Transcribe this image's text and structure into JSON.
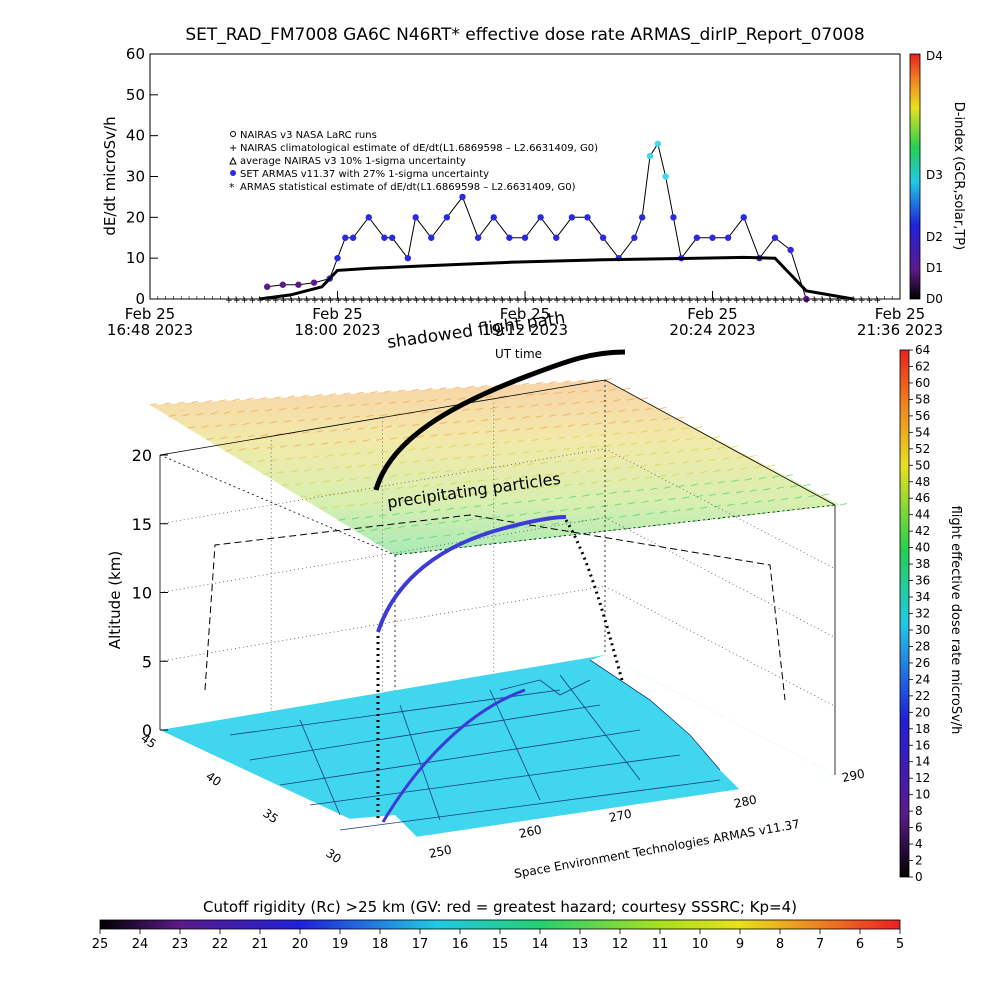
{
  "chart_data": [
    {
      "type": "line",
      "title": "SET_RAD_FM7008  GA6C N46RT* effective dose rate ARMAS_dirIP_Report_07008",
      "ylabel": "dE/dt microSv/h",
      "xlabel": "UT time",
      "ylim": [
        0,
        60
      ],
      "yticks": [
        "0",
        "10",
        "20",
        "30",
        "40",
        "50",
        "60"
      ],
      "xlim_hours": [
        16.8,
        21.6
      ],
      "xticks": [
        {
          "l1": "Feb 25",
          "l2": "16:48 2023",
          "h": 16.8
        },
        {
          "l1": "Feb 25",
          "l2": "18:00 2023",
          "h": 18.0
        },
        {
          "l1": "Feb 25",
          "l2": "19:12 2023",
          "h": 19.2
        },
        {
          "l1": "Feb 25",
          "l2": "20:24 2023",
          "h": 20.4
        },
        {
          "l1": "Feb 25",
          "l2": "21:36 2023",
          "h": 21.6
        }
      ],
      "legend": [
        "NAIRAS v3 NASA LaRC runs",
        "NAIRAS climatological estimate of dE/dt(L1.6869598 – L2.6631409, G0)",
        "average NAIRAS v3 10% 1-sigma uncertainty",
        "SET ARMAS v11.37 with 27% 1-sigma uncertainty",
        "ARMAS statistical estimate of dE/dt(L1.6869598 – L2.6631409, G0)"
      ],
      "series": [
        {
          "name": "SET ARMAS v11.37 with 27% 1-sigma uncertainty",
          "x": [
            17.55,
            17.65,
            17.75,
            17.85,
            17.95,
            18.0,
            18.05,
            18.1,
            18.2,
            18.3,
            18.35,
            18.45,
            18.5,
            18.6,
            18.7,
            18.8,
            18.9,
            19.0,
            19.1,
            19.2,
            19.3,
            19.4,
            19.5,
            19.6,
            19.7,
            19.8,
            19.9,
            19.95,
            20.0,
            20.05,
            20.1,
            20.15,
            20.2,
            20.3,
            20.4,
            20.5,
            20.6,
            20.7,
            20.8,
            20.9,
            21.0
          ],
          "y": [
            3,
            3.5,
            3.5,
            4,
            5,
            10,
            15,
            15,
            20,
            15,
            15,
            10,
            20,
            15,
            20,
            25,
            15,
            20,
            15,
            15,
            20,
            15,
            20,
            20,
            15,
            10,
            15,
            20,
            35,
            38,
            30,
            20,
            10,
            15,
            15,
            15,
            20,
            10,
            15,
            12,
            0
          ]
        },
        {
          "name": "ARMAS statistical estimate of dE/dt(L1.6869598 – L2.6631409, G0)",
          "x": [
            17.5,
            17.7,
            17.9,
            18.0,
            18.2,
            18.5,
            18.8,
            19.1,
            19.4,
            19.7,
            20.0,
            20.3,
            20.6,
            20.8,
            20.9,
            21.0,
            21.3
          ],
          "y": [
            0,
            1,
            3,
            7,
            7.5,
            8,
            8.5,
            9,
            9.3,
            9.6,
            9.8,
            10,
            10.2,
            10,
            6,
            2,
            0
          ]
        }
      ],
      "colorbar": {
        "label": "D-index (GCR,solar,TP)",
        "ticks": [
          "D0",
          "D1",
          "D2",
          "D3",
          "D4"
        ]
      }
    },
    {
      "type": "scatter",
      "zlabel": "Altitude (km)",
      "zticks": [
        "0",
        "5",
        "10",
        "15",
        "20"
      ],
      "lat_ticks": [
        "45",
        "40",
        "35",
        "30"
      ],
      "lon_ticks": [
        "250",
        "260",
        "270",
        "280",
        "290"
      ],
      "annotations": [
        "shadowed flight path",
        "precipitating particles"
      ],
      "credit": "Space Environment Technologies ARMAS v11.37",
      "right_colorbar": {
        "label": "flight effective dose rate microSv/h",
        "ticks": [
          "0",
          "2",
          "4",
          "6",
          "8",
          "10",
          "12",
          "14",
          "16",
          "18",
          "20",
          "22",
          "24",
          "26",
          "28",
          "30",
          "32",
          "34",
          "36",
          "38",
          "40",
          "42",
          "44",
          "46",
          "48",
          "50",
          "52",
          "54",
          "56",
          "58",
          "60",
          "62",
          "64"
        ]
      },
      "bottom_colorbar": {
        "label": "Cutoff rigidity (Rc) >25 km (GV: red = greatest hazard; courtesy SSSRC; Kp=4)",
        "ticks": [
          "25",
          "24",
          "23",
          "22",
          "21",
          "20",
          "19",
          "18",
          "17",
          "16",
          "15",
          "14",
          "13",
          "12",
          "11",
          "10",
          "9",
          "8",
          "7",
          "6",
          "5"
        ]
      }
    }
  ],
  "colors": {
    "map": "#3fd6ee",
    "path": "#3b3bd8",
    "flight_shadow": "#000000"
  }
}
